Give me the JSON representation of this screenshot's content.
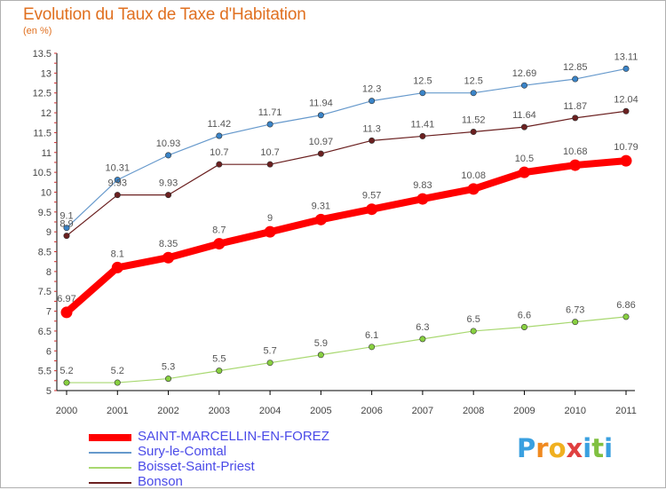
{
  "title": "Evolution du Taux de Taxe d'Habitation",
  "unit": "(en %)",
  "logo": {
    "letters": [
      "P",
      "r",
      "o",
      "x",
      "i",
      "t",
      "i"
    ],
    "colors": [
      "#3aa0e0",
      "#f08a20",
      "#f0b020",
      "#e04040",
      "#3aa0e0",
      "#80c040",
      "#3aa0e0"
    ]
  },
  "chart_data": {
    "type": "line",
    "x": [
      2000,
      2001,
      2002,
      2003,
      2004,
      2005,
      2006,
      2007,
      2008,
      2009,
      2010,
      2011
    ],
    "xticks": [
      "2000",
      "2001",
      "2002",
      "2003",
      "2004",
      "2005",
      "2006",
      "2007",
      "2008",
      "2009",
      "2010",
      "2011"
    ],
    "ylim": [
      5,
      13.5
    ],
    "yticks": [
      "5",
      "5.5",
      "6",
      "6.5",
      "7",
      "7.5",
      "8",
      "8.5",
      "9",
      "9.5",
      "10",
      "10.5",
      "11",
      "11.5",
      "12",
      "12.5",
      "13",
      "13.5"
    ],
    "grid": false,
    "legend_position": "bottom-left",
    "series": [
      {
        "name": "SAINT-MARCELLIN-EN-FOREZ",
        "color": "#ff0000",
        "values": [
          6.97,
          8.1,
          8.35,
          8.7,
          9,
          9.31,
          9.57,
          9.83,
          10.08,
          10.5,
          10.68,
          10.79
        ],
        "labels": [
          "6.97",
          "8.1",
          "8.35",
          "8.7",
          "9",
          "9.31",
          "9.57",
          "9.83",
          "10.08",
          "10.5",
          "10.68",
          "10.79"
        ]
      },
      {
        "name": "Sury-le-Comtal",
        "color": "#6699cc",
        "marker": "#3a84c8",
        "values": [
          9.1,
          10.31,
          10.93,
          11.42,
          11.71,
          11.94,
          12.3,
          12.5,
          12.5,
          12.69,
          12.85,
          13.11
        ],
        "labels": [
          "9.1",
          "10.31",
          "10.93",
          "11.42",
          "11.71",
          "11.94",
          "12.3",
          "12.5",
          "12.5",
          "12.69",
          "12.85",
          "13.11"
        ]
      },
      {
        "name": "Boisset-Saint-Priest",
        "color": "#a8d870",
        "marker": "#88d040",
        "values": [
          5.2,
          5.2,
          5.3,
          5.5,
          5.7,
          5.9,
          6.1,
          6.3,
          6.5,
          6.6,
          6.73,
          6.86
        ],
        "labels": [
          "5.2",
          "5.2",
          "5.3",
          "5.5",
          "5.7",
          "5.9",
          "6.1",
          "6.3",
          "6.5",
          "6.6",
          "6.73",
          "6.86"
        ]
      },
      {
        "name": "Bonson",
        "color": "#6b2020",
        "marker": "#6b2020",
        "values": [
          8.9,
          9.93,
          9.93,
          10.7,
          10.7,
          10.97,
          11.3,
          11.41,
          11.52,
          11.64,
          11.87,
          12.04
        ],
        "labels": [
          "8.9",
          "9.93",
          "9.93",
          "10.7",
          "10.7",
          "10.97",
          "11.3",
          "11.41",
          "11.52",
          "11.64",
          "11.87",
          "12.04"
        ]
      }
    ]
  }
}
